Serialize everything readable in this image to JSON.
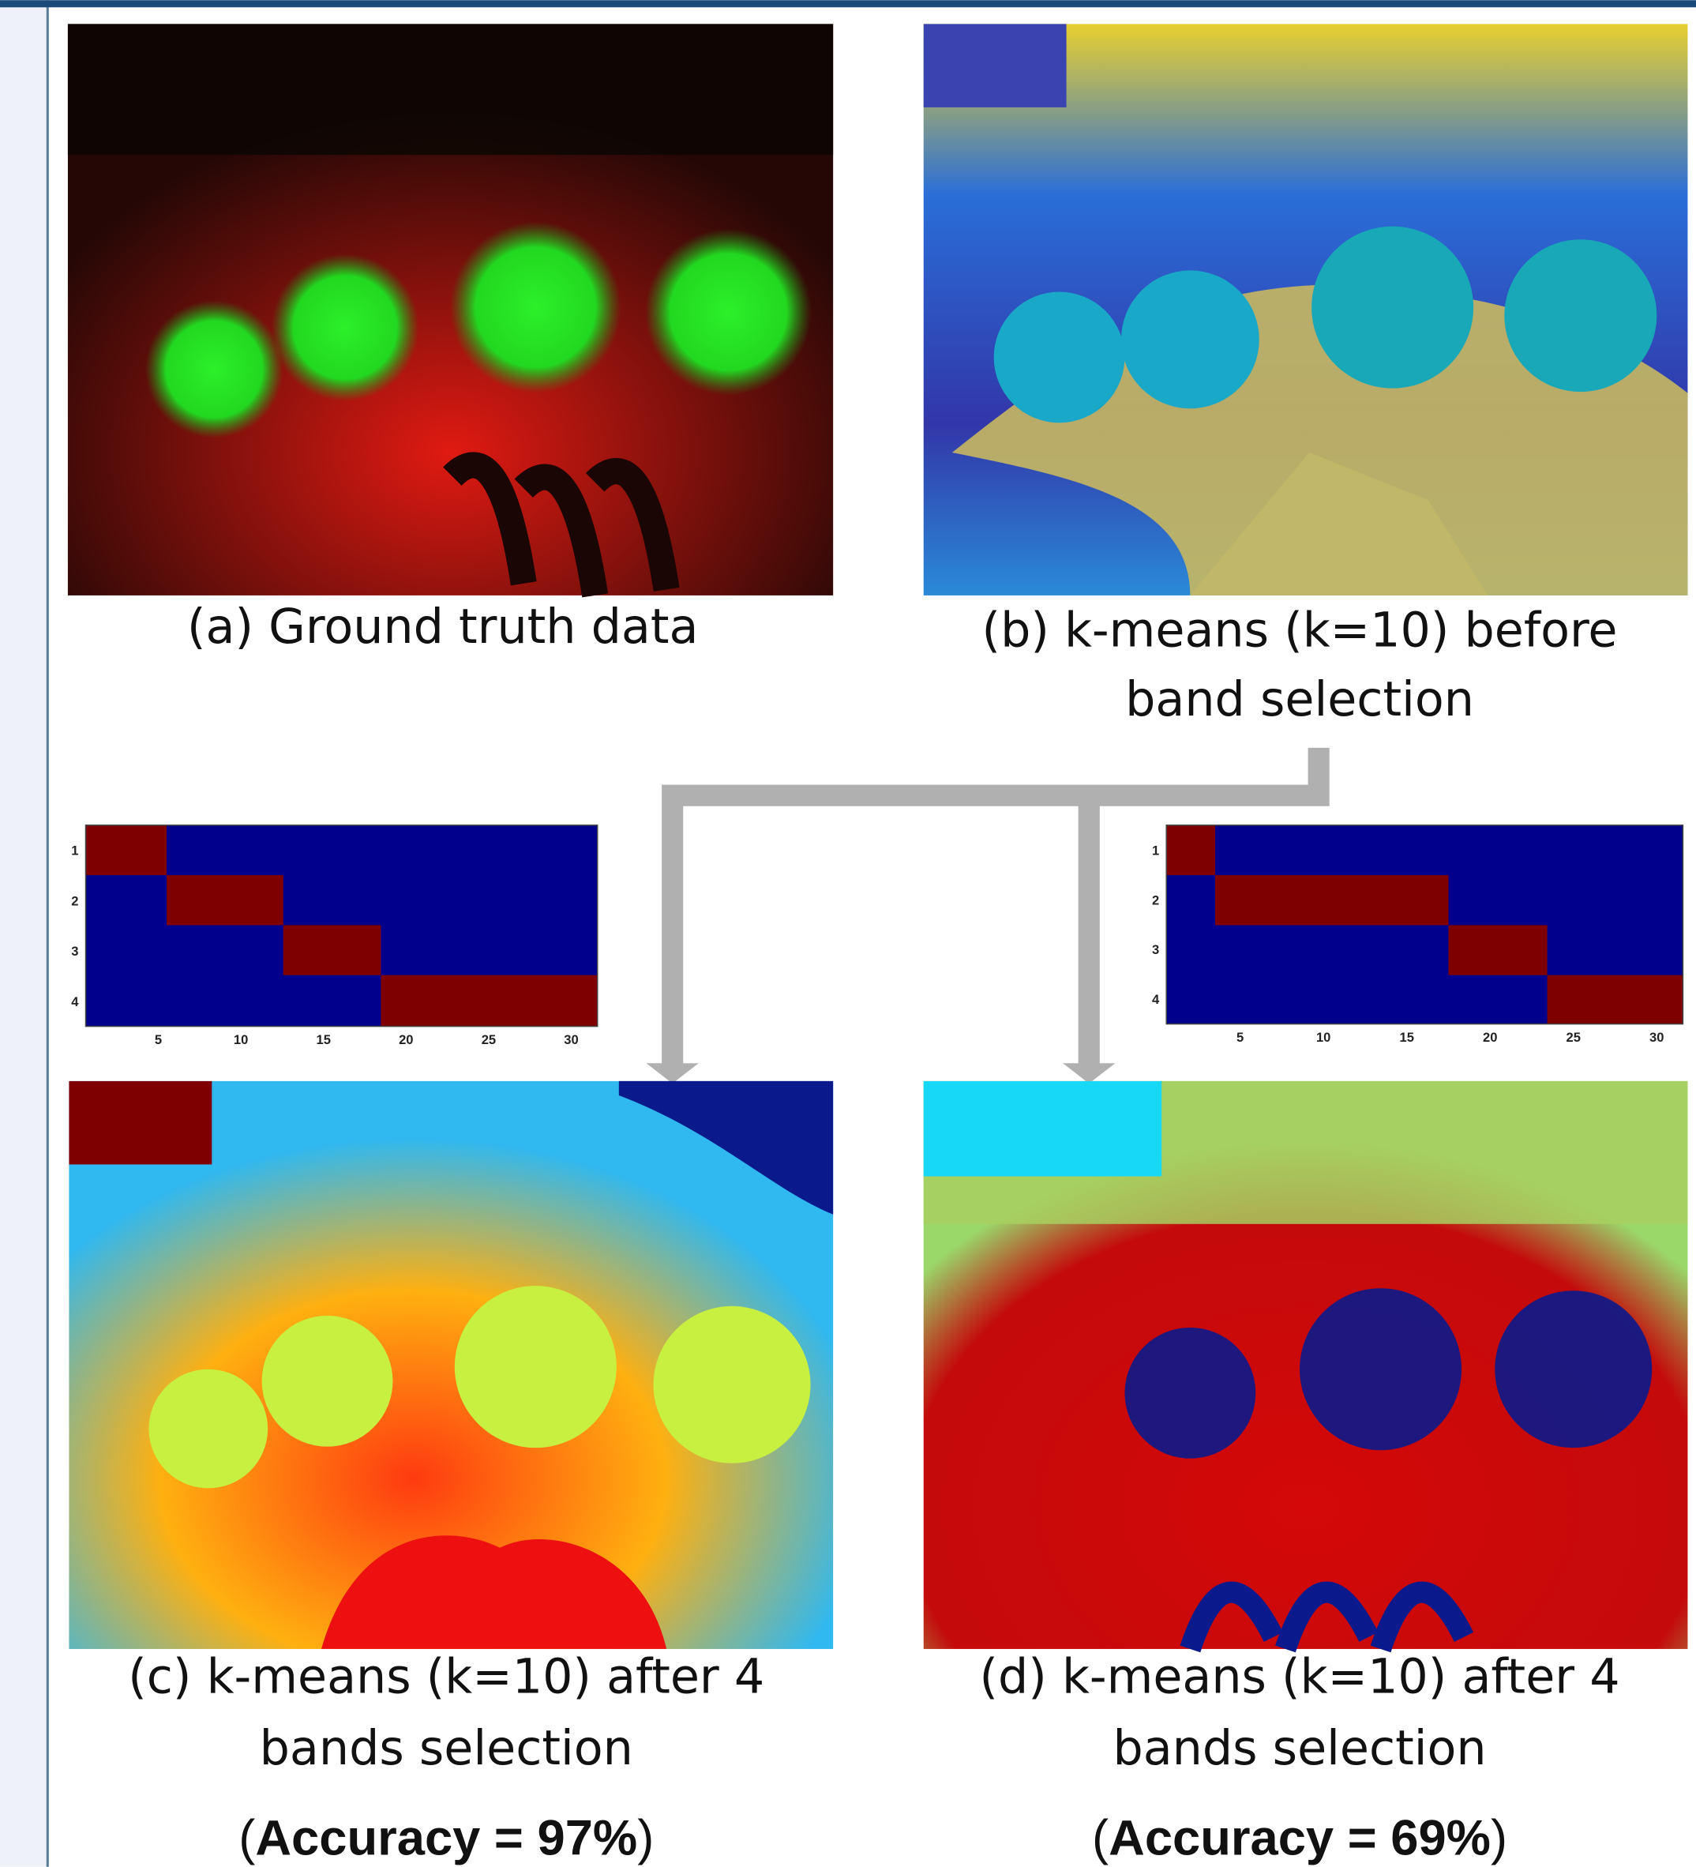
{
  "panels": [
    {
      "caption": [
        "(a) Ground truth data"
      ]
    },
    {
      "caption": [
        "(b) k-means (k=10) before",
        "band selection"
      ]
    },
    {
      "caption": [
        "(c) k-means (k=10) after 4",
        "bands selection"
      ],
      "accuracy": {
        "open": "(",
        "label": "Accuracy =  97%",
        "close": ")"
      }
    },
    {
      "caption": [
        "(d) k-means (k=10) after 4",
        "bands selection"
      ],
      "accuracy": {
        "open": "(",
        "label": "Accuracy =  69%",
        "close": ")"
      }
    }
  ],
  "heatmaps": [
    {
      "row_ticks": [
        1,
        2,
        3,
        4
      ],
      "col_ticks": [
        5,
        10,
        15,
        20,
        25,
        30
      ]
    },
    {
      "row_ticks": [
        1,
        2,
        3,
        4
      ],
      "col_ticks": [
        5,
        10,
        15,
        20,
        25,
        30
      ]
    }
  ]
}
